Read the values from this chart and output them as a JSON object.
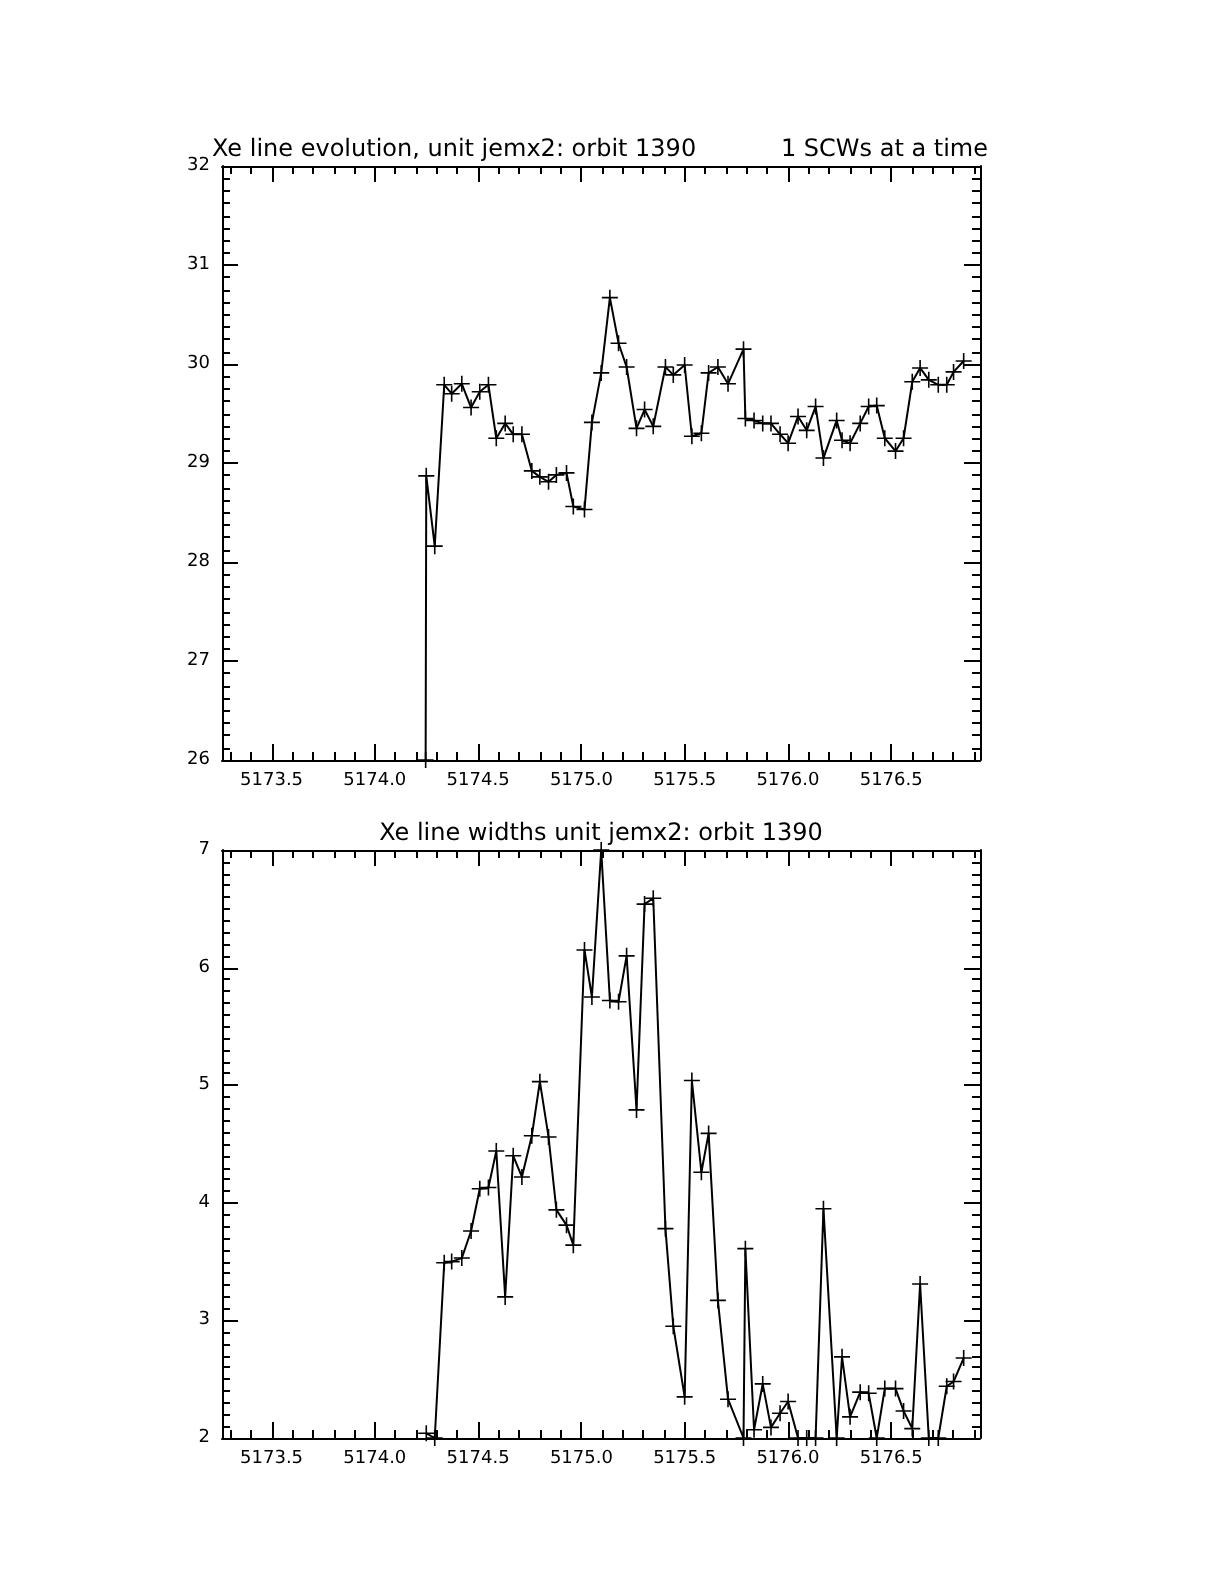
{
  "chart_data": [
    {
      "type": "line",
      "title": "Xe line evolution, unit jemx2: orbit 1390",
      "subtitle": "1 SCWs at a time",
      "color": "#000000",
      "marker": "cross",
      "line_style": "solid",
      "x": [
        5174.246,
        5174.249,
        5174.29,
        5174.336,
        5174.372,
        5174.421,
        5174.466,
        5174.508,
        5174.55,
        5174.588,
        5174.631,
        5174.67,
        5174.712,
        5174.76,
        5174.799,
        5174.841,
        5174.879,
        5174.928,
        5174.961,
        5175.015,
        5175.051,
        5175.096,
        5175.138,
        5175.18,
        5175.219,
        5175.267,
        5175.306,
        5175.348,
        5175.407,
        5175.445,
        5175.5,
        5175.535,
        5175.581,
        5175.616,
        5175.661,
        5175.71,
        5175.785,
        5175.794,
        5175.836,
        5175.878,
        5175.918,
        5175.962,
        5176.001,
        5176.049,
        5176.091,
        5176.134,
        5176.172,
        5176.236,
        5176.262,
        5176.301,
        5176.35,
        5176.391,
        5176.43,
        5176.469,
        5176.521,
        5176.56,
        5176.602,
        5176.64,
        5176.682,
        5176.728,
        5176.769,
        5176.802,
        5176.851
      ],
      "values": [
        26,
        28.87,
        28.16,
        29.79,
        29.7,
        29.8,
        29.56,
        29.72,
        29.79,
        29.25,
        29.4,
        29.29,
        29.29,
        28.92,
        28.86,
        28.81,
        28.88,
        28.9,
        28.56,
        28.53,
        29.41,
        29.91,
        30.67,
        30.21,
        29.97,
        29.35,
        29.54,
        29.37,
        29.97,
        29.89,
        29.99,
        29.27,
        29.3,
        29.91,
        29.97,
        29.8,
        30.15,
        29.45,
        29.43,
        29.4,
        29.4,
        29.29,
        29.2,
        29.47,
        29.33,
        29.57,
        29.05,
        29.43,
        29.23,
        29.2,
        29.4,
        29.57,
        29.58,
        29.25,
        29.12,
        29.25,
        29.82,
        29.96,
        29.84,
        29.79,
        29.79,
        29.92,
        30.03
      ],
      "xlim": [
        5173.26,
        5176.93
      ],
      "xticks": [
        {
          "value": 5173.3,
          "label": null
        },
        {
          "value": 5173.4,
          "label": null
        },
        5173.5,
        {
          "value": 5173.6,
          "label": null
        },
        {
          "value": 5173.7,
          "label": null
        },
        {
          "value": 5173.8,
          "label": null
        },
        {
          "value": 5173.9,
          "label": null
        },
        {
          "value": 5174,
          "label": "5174.0"
        },
        {
          "value": 5174.1,
          "label": null
        },
        {
          "value": 5174.2,
          "label": null
        },
        {
          "value": 5174.3,
          "label": null
        },
        {
          "value": 5174.4,
          "label": null
        },
        5174.5,
        {
          "value": 5174.6,
          "label": null
        },
        {
          "value": 5174.7,
          "label": null
        },
        {
          "value": 5174.8,
          "label": null
        },
        {
          "value": 5174.9,
          "label": null
        },
        {
          "value": 5175,
          "label": "5175.0"
        },
        {
          "value": 5175.1,
          "label": null
        },
        {
          "value": 5175.2,
          "label": null
        },
        {
          "value": 5175.3,
          "label": null
        },
        {
          "value": 5175.4,
          "label": null
        },
        5175.5,
        {
          "value": 5175.6,
          "label": null
        },
        {
          "value": 5175.7,
          "label": null
        },
        {
          "value": 5175.8,
          "label": null
        },
        {
          "value": 5175.9,
          "label": null
        },
        {
          "value": 5176,
          "label": "5176.0"
        },
        {
          "value": 5176.1,
          "label": null
        },
        {
          "value": 5176.2,
          "label": null
        },
        {
          "value": 5176.3,
          "label": null
        },
        {
          "value": 5176.4,
          "label": null
        },
        5176.5,
        {
          "value": 5176.6,
          "label": null
        },
        {
          "value": 5176.7,
          "label": null
        },
        {
          "value": 5176.8,
          "label": null
        },
        {
          "value": 5176.9,
          "label": null
        }
      ],
      "ylim": [
        26,
        32
      ],
      "yticks": [
        26,
        {
          "value": 26.125,
          "label": null
        },
        {
          "value": 26.25,
          "label": null
        },
        {
          "value": 26.375,
          "label": null
        },
        {
          "value": 26.5,
          "label": null
        },
        {
          "value": 26.625,
          "label": null
        },
        {
          "value": 26.75,
          "label": null
        },
        {
          "value": 26.875,
          "label": null
        },
        27,
        {
          "value": 27.125,
          "label": null
        },
        {
          "value": 27.25,
          "label": null
        },
        {
          "value": 27.375,
          "label": null
        },
        {
          "value": 27.5,
          "label": null
        },
        {
          "value": 27.625,
          "label": null
        },
        {
          "value": 27.75,
          "label": null
        },
        {
          "value": 27.875,
          "label": null
        },
        28,
        {
          "value": 28.125,
          "label": null
        },
        {
          "value": 28.25,
          "label": null
        },
        {
          "value": 28.375,
          "label": null
        },
        {
          "value": 28.5,
          "label": null
        },
        {
          "value": 28.625,
          "label": null
        },
        {
          "value": 28.75,
          "label": null
        },
        {
          "value": 28.875,
          "label": null
        },
        29,
        {
          "value": 29.125,
          "label": null
        },
        {
          "value": 29.25,
          "label": null
        },
        {
          "value": 29.375,
          "label": null
        },
        {
          "value": 29.5,
          "label": null
        },
        {
          "value": 29.625,
          "label": null
        },
        {
          "value": 29.75,
          "label": null
        },
        {
          "value": 29.875,
          "label": null
        },
        30,
        {
          "value": 30.125,
          "label": null
        },
        {
          "value": 30.25,
          "label": null
        },
        {
          "value": 30.375,
          "label": null
        },
        {
          "value": 30.5,
          "label": null
        },
        {
          "value": 30.625,
          "label": null
        },
        {
          "value": 30.75,
          "label": null
        },
        {
          "value": 30.875,
          "label": null
        },
        31,
        {
          "value": 31.125,
          "label": null
        },
        {
          "value": 31.25,
          "label": null
        },
        {
          "value": 31.375,
          "label": null
        },
        {
          "value": 31.5,
          "label": null
        },
        {
          "value": 31.625,
          "label": null
        },
        {
          "value": 31.75,
          "label": null
        },
        {
          "value": 31.875,
          "label": null
        },
        32
      ]
    },
    {
      "type": "line",
      "title": "Xe line widths unit jemx2: orbit 1390",
      "color": "#000000",
      "marker": "cross",
      "line_style": "solid",
      "x": [
        5174.249,
        5174.29,
        5174.336,
        5174.372,
        5174.421,
        5174.466,
        5174.508,
        5174.55,
        5174.588,
        5174.631,
        5174.67,
        5174.712,
        5174.76,
        5174.799,
        5174.841,
        5174.879,
        5174.928,
        5174.961,
        5175.015,
        5175.051,
        5175.096,
        5175.138,
        5175.18,
        5175.219,
        5175.267,
        5175.306,
        5175.348,
        5175.407,
        5175.445,
        5175.5,
        5175.535,
        5175.581,
        5175.616,
        5175.661,
        5175.71,
        5175.785,
        5175.794,
        5175.836,
        5175.878,
        5175.918,
        5175.962,
        5176.001,
        5176.049,
        5176.091,
        5176.134,
        5176.172,
        5176.236,
        5176.262,
        5176.301,
        5176.35,
        5176.391,
        5176.43,
        5176.469,
        5176.521,
        5176.56,
        5176.602,
        5176.64,
        5176.682,
        5176.728,
        5176.769,
        5176.802,
        5176.851
      ],
      "values": [
        2.04,
        2,
        3.49,
        3.5,
        3.53,
        3.76,
        4.12,
        4.13,
        4.44,
        3.2,
        4.4,
        4.22,
        4.57,
        5.03,
        4.56,
        3.94,
        3.81,
        3.64,
        6.15,
        5.75,
        7.0,
        5.72,
        5.71,
        6.1,
        4.79,
        6.54,
        6.59,
        3.78,
        2.95,
        2.35,
        5.04,
        4.26,
        4.59,
        3.17,
        2.33,
        2,
        3.61,
        2.07,
        2.46,
        2.09,
        2.21,
        2.31,
        2,
        2,
        2,
        3.95,
        2,
        2.69,
        2.18,
        2.39,
        2.38,
        2,
        2.42,
        2.42,
        2.23,
        2.08,
        3.31,
        2,
        2.0,
        2.44,
        2.48,
        2.68
      ],
      "xlim": [
        5173.26,
        5176.93
      ],
      "xticks": [
        {
          "value": 5173.3,
          "label": null
        },
        {
          "value": 5173.4,
          "label": null
        },
        5173.5,
        {
          "value": 5173.6,
          "label": null
        },
        {
          "value": 5173.7,
          "label": null
        },
        {
          "value": 5173.8,
          "label": null
        },
        {
          "value": 5173.9,
          "label": null
        },
        {
          "value": 5174,
          "label": "5174.0"
        },
        {
          "value": 5174.1,
          "label": null
        },
        {
          "value": 5174.2,
          "label": null
        },
        {
          "value": 5174.3,
          "label": null
        },
        {
          "value": 5174.4,
          "label": null
        },
        5174.5,
        {
          "value": 5174.6,
          "label": null
        },
        {
          "value": 5174.7,
          "label": null
        },
        {
          "value": 5174.8,
          "label": null
        },
        {
          "value": 5174.9,
          "label": null
        },
        {
          "value": 5175,
          "label": "5175.0"
        },
        {
          "value": 5175.1,
          "label": null
        },
        {
          "value": 5175.2,
          "label": null
        },
        {
          "value": 5175.3,
          "label": null
        },
        {
          "value": 5175.4,
          "label": null
        },
        5175.5,
        {
          "value": 5175.6,
          "label": null
        },
        {
          "value": 5175.7,
          "label": null
        },
        {
          "value": 5175.8,
          "label": null
        },
        {
          "value": 5175.9,
          "label": null
        },
        {
          "value": 5176,
          "label": "5176.0"
        },
        {
          "value": 5176.1,
          "label": null
        },
        {
          "value": 5176.2,
          "label": null
        },
        {
          "value": 5176.3,
          "label": null
        },
        {
          "value": 5176.4,
          "label": null
        },
        5176.5,
        {
          "value": 5176.6,
          "label": null
        },
        {
          "value": 5176.7,
          "label": null
        },
        {
          "value": 5176.8,
          "label": null
        },
        {
          "value": 5176.9,
          "label": null
        }
      ],
      "ylim": [
        2,
        7
      ],
      "yticks": [
        2,
        {
          "value": 2.1,
          "label": null
        },
        {
          "value": 2.2,
          "label": null
        },
        {
          "value": 2.3,
          "label": null
        },
        {
          "value": 2.4,
          "label": null
        },
        {
          "value": 2.5,
          "label": null
        },
        {
          "value": 2.6,
          "label": null
        },
        {
          "value": 2.7,
          "label": null
        },
        {
          "value": 2.8,
          "label": null
        },
        {
          "value": 2.9,
          "label": null
        },
        3,
        {
          "value": 3.1,
          "label": null
        },
        {
          "value": 3.2,
          "label": null
        },
        {
          "value": 3.3,
          "label": null
        },
        {
          "value": 3.4,
          "label": null
        },
        {
          "value": 3.5,
          "label": null
        },
        {
          "value": 3.6,
          "label": null
        },
        {
          "value": 3.7,
          "label": null
        },
        {
          "value": 3.8,
          "label": null
        },
        {
          "value": 3.9,
          "label": null
        },
        4,
        {
          "value": 4.1,
          "label": null
        },
        {
          "value": 4.2,
          "label": null
        },
        {
          "value": 4.3,
          "label": null
        },
        {
          "value": 4.4,
          "label": null
        },
        {
          "value": 4.5,
          "label": null
        },
        {
          "value": 4.6,
          "label": null
        },
        {
          "value": 4.7,
          "label": null
        },
        {
          "value": 4.8,
          "label": null
        },
        {
          "value": 4.9,
          "label": null
        },
        5,
        {
          "value": 5.1,
          "label": null
        },
        {
          "value": 5.2,
          "label": null
        },
        {
          "value": 5.3,
          "label": null
        },
        {
          "value": 5.4,
          "label": null
        },
        {
          "value": 5.5,
          "label": null
        },
        {
          "value": 5.6,
          "label": null
        },
        {
          "value": 5.7,
          "label": null
        },
        {
          "value": 5.8,
          "label": null
        },
        {
          "value": 5.9,
          "label": null
        },
        6,
        {
          "value": 6.1,
          "label": null
        },
        {
          "value": 6.2,
          "label": null
        },
        {
          "value": 6.3,
          "label": null
        },
        {
          "value": 6.4,
          "label": null
        },
        {
          "value": 6.5,
          "label": null
        },
        {
          "value": 6.6,
          "label": null
        },
        {
          "value": 6.7,
          "label": null
        },
        {
          "value": 6.8,
          "label": null
        },
        {
          "value": 6.9,
          "label": null
        },
        7
      ]
    }
  ]
}
